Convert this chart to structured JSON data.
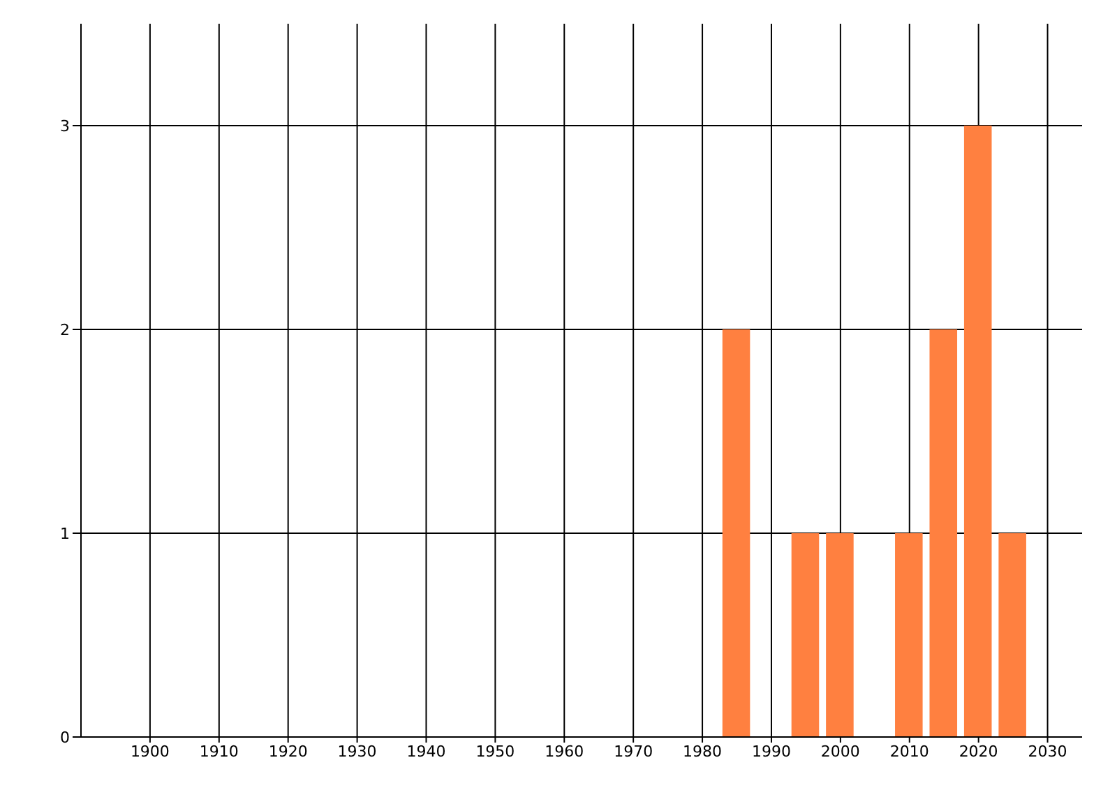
{
  "chart_data": {
    "type": "bar",
    "x": [
      1985,
      1995,
      2000,
      2010,
      2015,
      2020,
      2025
    ],
    "values": [
      2,
      1,
      1,
      1,
      2,
      3,
      1
    ],
    "color": "#ff8040",
    "xlim": [
      1890,
      2035
    ],
    "xticks": [
      1900,
      1910,
      1920,
      1930,
      1940,
      1950,
      1960,
      1970,
      1980,
      1990,
      2000,
      2010,
      2020,
      2030
    ],
    "ylim": [
      0,
      3.5
    ],
    "yticks": [
      0,
      1,
      2,
      3
    ],
    "grid": true,
    "legend": false
  }
}
